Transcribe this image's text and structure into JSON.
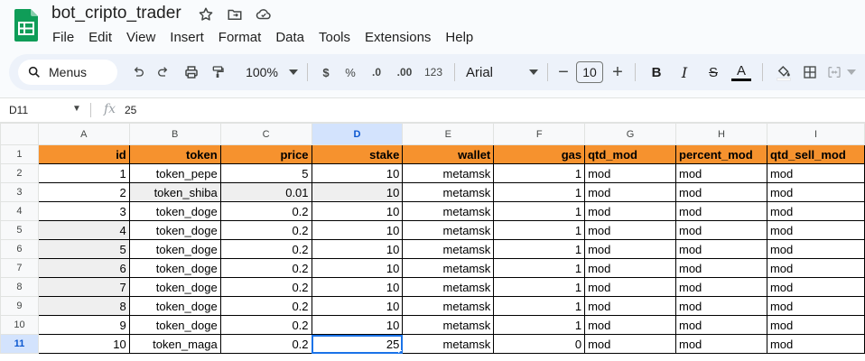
{
  "app": {
    "doc_title": "bot_cripto_trader"
  },
  "menu": [
    "File",
    "Edit",
    "View",
    "Insert",
    "Format",
    "Data",
    "Tools",
    "Extensions",
    "Help"
  ],
  "toolbar": {
    "search_label": "Menus",
    "zoom": "100%",
    "currency": "$",
    "percent": "%",
    "dec_less": ".0",
    "dec_more": ".00",
    "num_format": "123",
    "font": "Arial",
    "font_size": "10",
    "minus": "−",
    "plus": "+",
    "bold": "B",
    "italic": "I",
    "strike": "S",
    "text_color": "A"
  },
  "formula_bar": {
    "cell_ref": "D11",
    "fx": "fx",
    "value": "25"
  },
  "columns": [
    "A",
    "B",
    "C",
    "D",
    "E",
    "F",
    "G",
    "H",
    "I"
  ],
  "selected_col": "D",
  "selected_row": "11",
  "header_row": [
    "id",
    "token",
    "price",
    "stake",
    "wallet",
    "gas",
    "qtd_mod",
    "percent_mod",
    "qtd_sell_mod"
  ],
  "rows": [
    [
      "1",
      "token_pepe",
      "5",
      "10",
      "metamsk",
      "1",
      "mod",
      "mod",
      "mod"
    ],
    [
      "2",
      "token_shiba",
      "0.01",
      "10",
      "metamsk",
      "1",
      "mod",
      "mod",
      "mod"
    ],
    [
      "3",
      "token_doge",
      "0.2",
      "10",
      "metamsk",
      "1",
      "mod",
      "mod",
      "mod"
    ],
    [
      "4",
      "token_doge",
      "0.2",
      "10",
      "metamsk",
      "1",
      "mod",
      "mod",
      "mod"
    ],
    [
      "5",
      "token_doge",
      "0.2",
      "10",
      "metamsk",
      "1",
      "mod",
      "mod",
      "mod"
    ],
    [
      "6",
      "token_doge",
      "0.2",
      "10",
      "metamsk",
      "1",
      "mod",
      "mod",
      "mod"
    ],
    [
      "7",
      "token_doge",
      "0.2",
      "10",
      "metamsk",
      "1",
      "mod",
      "mod",
      "mod"
    ],
    [
      "8",
      "token_doge",
      "0.2",
      "10",
      "metamsk",
      "1",
      "mod",
      "mod",
      "mod"
    ],
    [
      "9",
      "token_doge",
      "0.2",
      "10",
      "metamsk",
      "1",
      "mod",
      "mod",
      "mod"
    ],
    [
      "10",
      "token_maga",
      "0.2",
      "25",
      "metamsk",
      "0",
      "mod",
      "mod",
      "mod"
    ]
  ],
  "row_numbers": [
    "1",
    "2",
    "3",
    "4",
    "5",
    "6",
    "7",
    "8",
    "9",
    "10",
    "11"
  ],
  "colors": {
    "header_fill": "#f6922e",
    "accent": "#1a73e8",
    "sheets_green": "#0f9d58"
  }
}
